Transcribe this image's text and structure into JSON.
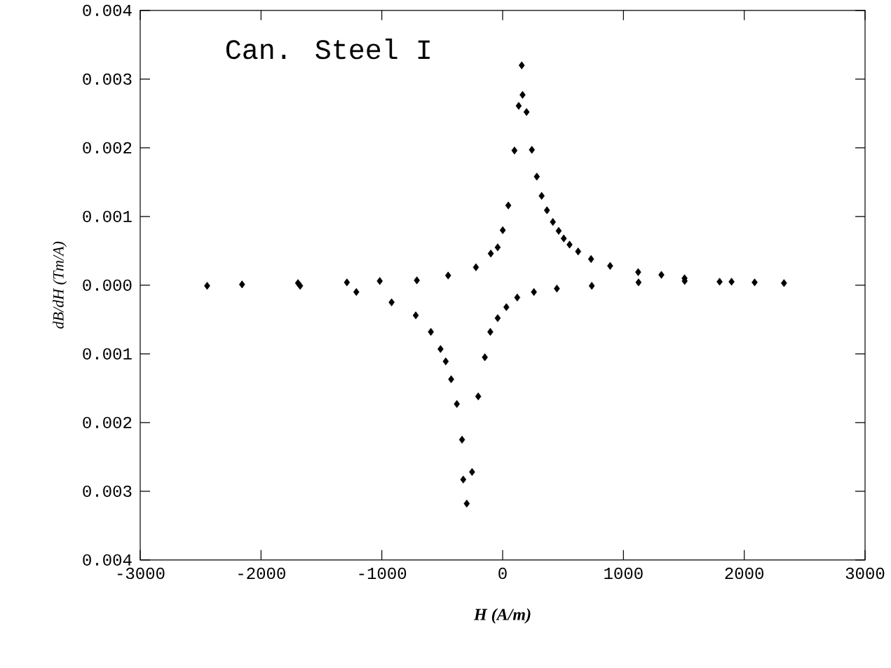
{
  "chart_data": {
    "type": "scatter",
    "title": "Can. Steel I",
    "xlabel": "H (A/m)",
    "ylabel": "dB/dH (Tm/A)",
    "marker": "diamond",
    "xlim": [
      -3000,
      3000
    ],
    "xticks": [
      -3000,
      -2000,
      -1000,
      0,
      1000,
      2000,
      3000
    ],
    "ylim": [
      -0.004,
      0.004
    ],
    "yticks": [
      {
        "value": -0.004,
        "label": "0.004"
      },
      {
        "value": -0.003,
        "label": "0.003"
      },
      {
        "value": -0.002,
        "label": "0.002"
      },
      {
        "value": -0.001,
        "label": "0.001"
      },
      {
        "value": 0,
        "label": "0.000"
      },
      {
        "value": 0.001,
        "label": "0.001"
      },
      {
        "value": 0.002,
        "label": "0.002"
      },
      {
        "value": 0.003,
        "label": "0.003"
      },
      {
        "value": 0.004,
        "label": "0.004"
      }
    ],
    "series": [
      {
        "color": "#000000",
        "x": [
          -2446,
          -2157,
          -1694,
          -1289,
          -1017,
          -710,
          -451,
          -221,
          -98,
          -41,
          1,
          47,
          98,
          133,
          165,
          158,
          198,
          242,
          283,
          323,
          367,
          416,
          464,
          506,
          554,
          625,
          732,
          890,
          1122,
          1314,
          1506,
          1796,
          2086,
          2329
        ],
        "values": [
          -1e-05,
          1e-05,
          3e-05,
          4e-05,
          6e-05,
          7e-05,
          0.00014,
          0.00026,
          0.00046,
          0.00055,
          0.0008,
          0.00116,
          0.00196,
          0.00261,
          0.00277,
          0.0032,
          0.00252,
          0.00197,
          0.00158,
          0.0013,
          0.00109,
          0.00092,
          0.00079,
          0.00068,
          0.00059,
          0.00049,
          0.00038,
          0.00028,
          0.00019,
          0.00015,
          0.0001,
          5e-05,
          4e-05,
          3e-05
        ]
      },
      {
        "color": "#000000",
        "x": [
          -1676,
          -1211,
          -919,
          -719,
          -594,
          -514,
          -471,
          -426,
          -379,
          -336,
          -326,
          -297,
          -253,
          -202,
          -147,
          -102,
          -41,
          31,
          121,
          259,
          449,
          738,
          1125,
          1507,
          1895
        ],
        "values": [
          -1e-05,
          -0.0001,
          -0.00025,
          -0.00044,
          -0.00068,
          -0.00093,
          -0.00111,
          -0.00137,
          -0.00173,
          -0.00225,
          -0.00283,
          -0.00318,
          -0.00272,
          -0.00162,
          -0.00105,
          -0.00068,
          -0.00048,
          -0.00032,
          -0.00018,
          -0.0001,
          -5e-05,
          -1e-05,
          4e-05,
          6e-05,
          5e-05
        ]
      }
    ]
  }
}
